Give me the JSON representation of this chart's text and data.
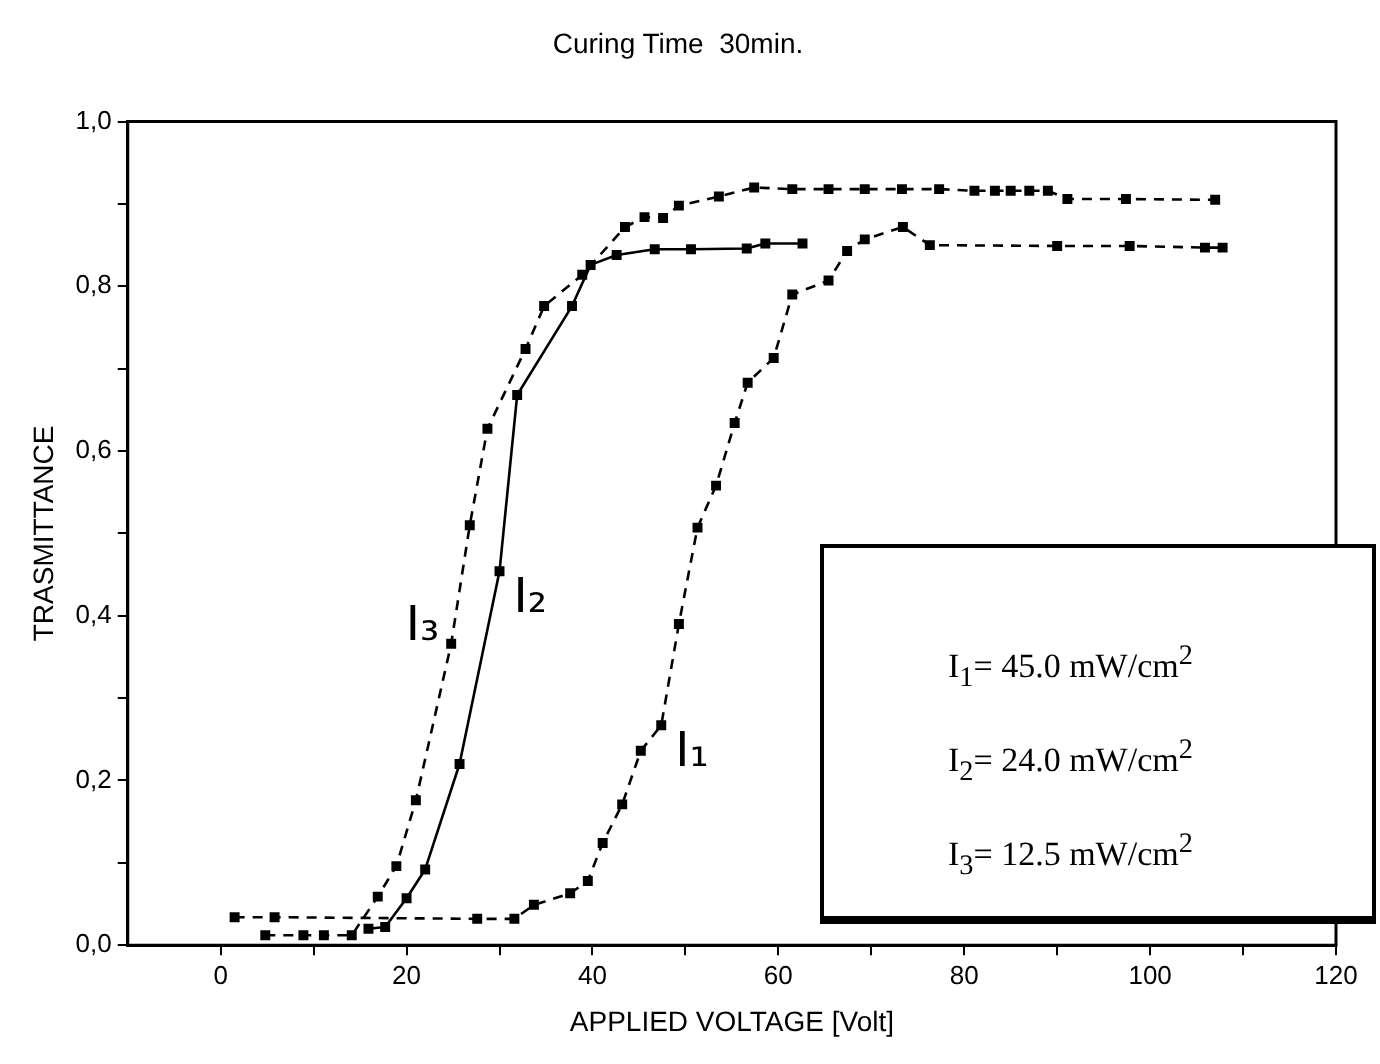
{
  "chart_data": {
    "type": "line",
    "title": "Curing Time  30min.",
    "xlabel": "APPLIED VOLTAGE [Volt]",
    "ylabel": "TRASMITTANCE",
    "xlim": [
      -10,
      120
    ],
    "xticks": [
      0,
      {
        "value": 10,
        "label": null
      },
      20,
      {
        "value": 30,
        "label": null
      },
      40,
      {
        "value": 50,
        "label": null
      },
      60,
      {
        "value": 70,
        "label": null
      },
      80,
      {
        "value": 90,
        "label": null
      },
      100,
      {
        "value": 110,
        "label": null
      },
      120
    ],
    "ylim": [
      0,
      1.0
    ],
    "yticks": [
      {
        "value": 0,
        "label": "0,0"
      },
      {
        "value": 0.1,
        "label": null
      },
      {
        "value": 0.2,
        "label": "0,2"
      },
      {
        "value": 0.3,
        "label": null
      },
      {
        "value": 0.4,
        "label": "0,4"
      },
      {
        "value": 0.5,
        "label": null
      },
      {
        "value": 0.6,
        "label": "0,6"
      },
      {
        "value": 0.7,
        "label": null
      },
      {
        "value": 0.8,
        "label": "0,8"
      },
      {
        "value": 0.9,
        "label": null
      },
      {
        "value": 1.0,
        "label": "1,0"
      }
    ],
    "grid": false,
    "legend": false,
    "marker": "square",
    "annotations": [
      "I$_{1}$= 45.0 mW/cm$^{2}$",
      "I$_{2}$= 24.0 mW/cm$^{2}$",
      "I$_{3}$= 12.5 mW/cm$^{2}$"
    ],
    "series": [
      {
        "name": "I₁",
        "color": "#000000",
        "line_style": "dashed",
        "x": [
          1.5,
          5.8,
          27.6,
          31.6,
          33.7,
          37.6,
          39.5,
          41.1,
          43.2,
          45.2,
          47.4,
          49.3,
          51.3,
          53.3,
          55.3,
          56.7,
          59.5,
          61.5,
          65.4,
          67.4,
          69.3,
          73.4,
          76.3,
          90.0,
          97.8,
          105.9,
          107.8
        ],
        "values": [
          0.034,
          0.034,
          0.032,
          0.032,
          0.049,
          0.063,
          0.078,
          0.124,
          0.171,
          0.236,
          0.267,
          0.39,
          0.507,
          0.558,
          0.634,
          0.683,
          0.713,
          0.79,
          0.807,
          0.843,
          0.857,
          0.872,
          0.85,
          0.849,
          0.849,
          0.847,
          0.847
        ]
      },
      {
        "name": "I₂",
        "color": "#000000",
        "line_style": "solid",
        "x": [
          15.9,
          17.7,
          20.0,
          22.0,
          25.7,
          30.0,
          31.9,
          37.8,
          39.8,
          42.6,
          46.7,
          50.6,
          56.6,
          58.6,
          62.6
        ],
        "values": [
          0.02,
          0.022,
          0.057,
          0.092,
          0.22,
          0.454,
          0.668,
          0.776,
          0.826,
          0.838,
          0.845,
          0.845,
          0.846,
          0.852,
          0.852
        ]
      },
      {
        "name": "I₃",
        "color": "#000000",
        "line_style": "dashed",
        "x": [
          4.8,
          8.9,
          11.1,
          14.1,
          16.9,
          18.9,
          21.0,
          24.8,
          26.8,
          28.7,
          32.8,
          34.8,
          38.9,
          43.5,
          45.6,
          47.6,
          49.3,
          53.6,
          57.4,
          61.5,
          65.4,
          69.3,
          73.3,
          77.3,
          81.1,
          83.3,
          85.0,
          87.0,
          89.0,
          91.1,
          97.4,
          107.0
        ],
        "values": [
          0.012,
          0.012,
          0.012,
          0.012,
          0.059,
          0.096,
          0.176,
          0.366,
          0.51,
          0.627,
          0.724,
          0.776,
          0.814,
          0.872,
          0.884,
          0.883,
          0.898,
          0.909,
          0.92,
          0.918,
          0.918,
          0.918,
          0.918,
          0.918,
          0.916,
          0.916,
          0.916,
          0.916,
          0.916,
          0.906,
          0.906,
          0.905
        ]
      }
    ]
  }
}
